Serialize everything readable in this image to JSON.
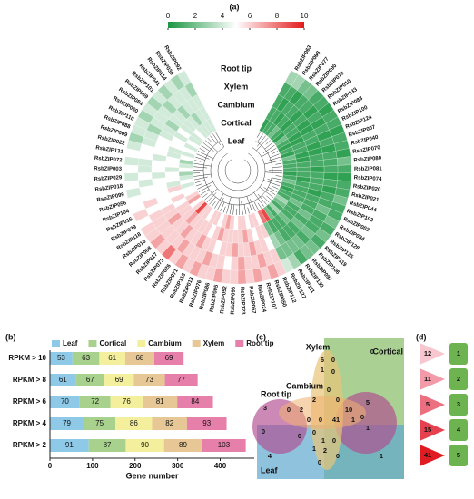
{
  "panel_a": {
    "label": "(a)",
    "colorbar": {
      "min": 0,
      "max": 10,
      "ticks": [
        0,
        2,
        4,
        6,
        8,
        10
      ],
      "low_color": "#1a9641",
      "mid_color": "#ffffff",
      "high_color": "#e31a1c"
    },
    "tissues": [
      "Root tip",
      "Xylem",
      "Cambium",
      "Cortical",
      "Leaf"
    ],
    "genes": [
      {
        "name": "RsbZIP063",
        "color": "#2a9d8f",
        "values": [
          3,
          1,
          1,
          1,
          0.5
        ]
      },
      {
        "name": "RsbZIP068",
        "color": "#2a9d8f",
        "values": [
          3,
          1,
          0.5,
          1,
          1
        ]
      },
      {
        "name": "RsbZIP077",
        "color": "#2a9d8f",
        "values": [
          2,
          0.5,
          1,
          0.5,
          1
        ]
      },
      {
        "name": "RsbZIP090",
        "color": "#2a9d8f",
        "values": [
          2,
          1,
          1,
          1,
          2
        ]
      },
      {
        "name": "RsbZIP079",
        "values": [
          1,
          1,
          0.5,
          0.5,
          1
        ]
      },
      {
        "name": "RsbZIP010",
        "values": [
          1,
          0.5,
          1,
          1,
          0.5
        ]
      },
      {
        "name": "RsbZIP133",
        "values": [
          0.5,
          1,
          0.5,
          1,
          2
        ]
      },
      {
        "name": "RsbZIP083",
        "values": [
          1,
          0.5,
          0.5,
          0.5,
          1
        ]
      },
      {
        "name": "RsbZIP100",
        "values": [
          1,
          1,
          1,
          0.5,
          0.5
        ]
      },
      {
        "name": "RsbZIP124",
        "values": [
          0.5,
          0.5,
          1,
          1,
          1
        ]
      },
      {
        "name": "RsbZIP007",
        "values": [
          1,
          1,
          0.5,
          1,
          0.5
        ]
      },
      {
        "name": "RsbZIP040",
        "values": [
          1,
          0.5,
          0.5,
          0.5,
          2
        ]
      },
      {
        "name": "RsbZIP070",
        "values": [
          0.5,
          1,
          1,
          0.5,
          1
        ]
      },
      {
        "name": "RsbZIP080",
        "values": [
          2,
          1,
          1,
          1,
          1
        ]
      },
      {
        "name": "RsbZIP081",
        "values": [
          1,
          1,
          0.5,
          1,
          1
        ]
      },
      {
        "name": "RsbZIP074",
        "values": [
          0.5,
          0.5,
          1,
          1,
          0.5
        ]
      },
      {
        "name": "RsbZIP020",
        "values": [
          1,
          1,
          1,
          0.5,
          1
        ]
      },
      {
        "name": "RsbZIP021",
        "values": [
          1,
          0.5,
          1,
          1,
          2
        ]
      },
      {
        "name": "RsbZIP044",
        "values": [
          2,
          1,
          0.5,
          1,
          1
        ]
      },
      {
        "name": "RsbZIP103",
        "values": [
          1,
          1,
          1,
          1,
          0.5
        ]
      },
      {
        "name": "RsbZIP002",
        "values": [
          1,
          2,
          1,
          1,
          1
        ]
      },
      {
        "name": "RsbZIP034",
        "values": [
          2,
          1,
          1,
          2,
          1
        ]
      },
      {
        "name": "RsbZIP128",
        "values": [
          1,
          1,
          2,
          1,
          3
        ]
      },
      {
        "name": "RsbZIP125",
        "values": [
          2,
          1,
          1,
          1,
          2
        ]
      },
      {
        "name": "RsbZIP119",
        "values": [
          1,
          2,
          2,
          1,
          1
        ]
      },
      {
        "name": "RsbZIP106",
        "values": [
          2,
          1,
          1,
          2,
          3
        ]
      },
      {
        "name": "RsbZIP097",
        "color": "#2a9d8f",
        "values": [
          2,
          2,
          1,
          1,
          1
        ]
      },
      {
        "name": "RsbZIP130",
        "color": "#2a9d8f",
        "values": [
          1,
          2,
          1,
          1,
          2
        ]
      },
      {
        "name": "RsbZIP111",
        "values": [
          3,
          2,
          2,
          1,
          9
        ]
      },
      {
        "name": "RsbZIP127",
        "values": [
          4,
          2,
          3,
          2,
          8
        ]
      },
      {
        "name": "RsbZIP112",
        "values": [
          6,
          6,
          5,
          6,
          5
        ]
      },
      {
        "name": "RsbZIP050",
        "values": [
          7,
          6,
          6,
          6,
          6
        ]
      },
      {
        "name": "RsbZIP107",
        "values": [
          6,
          7,
          6,
          5,
          6
        ]
      },
      {
        "name": "RsbZIP024",
        "values": [
          7,
          6,
          7,
          6,
          5
        ]
      },
      {
        "name": "RsbZIP067",
        "values": [
          6,
          6,
          6,
          7,
          6
        ]
      },
      {
        "name": "RsbZIP123",
        "values": [
          7,
          7,
          6,
          6,
          6
        ]
      },
      {
        "name": "RsbZIP098",
        "values": [
          6,
          6,
          7,
          6,
          5
        ]
      },
      {
        "name": "RsbZIP052",
        "values": [
          6,
          5,
          6,
          6,
          6
        ]
      },
      {
        "name": "RsbZIP005",
        "values": [
          7,
          6,
          6,
          6,
          7
        ]
      },
      {
        "name": "RsbZIP086",
        "color": "#e8202a",
        "values": [
          6,
          6,
          5,
          7,
          6
        ]
      },
      {
        "name": "RsbZIP076",
        "values": [
          6,
          7,
          6,
          6,
          5
        ]
      },
      {
        "name": "RsbZIP013",
        "values": [
          7,
          6,
          6,
          5,
          6
        ]
      },
      {
        "name": "RsbZIP116",
        "values": [
          6,
          6,
          7,
          6,
          6
        ]
      },
      {
        "name": "RsbZIP071",
        "values": [
          7,
          6,
          6,
          6,
          5
        ]
      },
      {
        "name": "RsbZIP026",
        "values": [
          6,
          7,
          6,
          6,
          6
        ]
      },
      {
        "name": "RsbZIP073",
        "values": [
          8,
          6,
          7,
          6,
          6
        ]
      },
      {
        "name": "RsbZIP017",
        "values": [
          6,
          6,
          6,
          7,
          9
        ]
      },
      {
        "name": "RsbZIP008",
        "color": "#e8202a",
        "values": [
          7,
          6,
          6,
          6,
          6
        ]
      },
      {
        "name": "RsbZIP016",
        "color": "#e8202a",
        "values": [
          6,
          6,
          7,
          6,
          5
        ]
      },
      {
        "name": "RsbZIP118",
        "color": "#e8202a",
        "values": [
          6,
          6,
          6,
          6,
          7
        ]
      },
      {
        "name": "RsbZIP039",
        "color": "#e8202a",
        "values": [
          5,
          6,
          6,
          5,
          6
        ]
      },
      {
        "name": "RsbZIP015",
        "values": [
          6,
          5,
          5,
          6,
          5
        ]
      },
      {
        "name": "RsbZIP104",
        "values": [
          5,
          6,
          5,
          5,
          5
        ]
      },
      {
        "name": "RsbZIP056",
        "values": [
          5,
          5,
          5,
          6,
          4
        ]
      },
      {
        "name": "RsbZIP099",
        "values": [
          4,
          5,
          5,
          4,
          5
        ]
      },
      {
        "name": "RsbZIP018",
        "values": [
          5,
          4,
          5,
          5,
          4
        ]
      },
      {
        "name": "RsbZIP029",
        "values": [
          4,
          5,
          4,
          5,
          3
        ]
      },
      {
        "name": "RsbZIP003",
        "values": [
          5,
          4,
          5,
          4,
          5
        ]
      },
      {
        "name": "RsbZIP072",
        "values": [
          4,
          4,
          5,
          5,
          4
        ]
      },
      {
        "name": "RsbZIP131",
        "values": [
          5,
          5,
          4,
          5,
          3
        ]
      },
      {
        "name": "RsbZIP022",
        "color": "#e8202a",
        "values": [
          4,
          5,
          5,
          4,
          5
        ]
      },
      {
        "name": "RsbZIP009",
        "color": "#e8202a",
        "values": [
          3,
          4,
          5,
          4,
          4
        ]
      },
      {
        "name": "RsbZIP088",
        "color": "#e8202a",
        "values": [
          4,
          4,
          5,
          5,
          5
        ]
      },
      {
        "name": "RsbZIP110",
        "color": "#e8202a",
        "values": [
          4,
          3,
          4,
          5,
          4
        ]
      },
      {
        "name": "RsbZIP060",
        "color": "#e8202a",
        "values": [
          3,
          4,
          4,
          4,
          5
        ]
      },
      {
        "name": "RsbZIP084",
        "values": [
          4,
          4,
          3,
          5,
          4
        ]
      },
      {
        "name": "RsbZIP059",
        "values": [
          3,
          4,
          4,
          4,
          4
        ]
      },
      {
        "name": "RsbZIP101",
        "values": [
          4,
          3,
          4,
          4,
          5
        ]
      },
      {
        "name": "RsbZIP041",
        "values": [
          3,
          4,
          3,
          4,
          4
        ]
      },
      {
        "name": "RsbZIP114",
        "values": [
          4,
          4,
          4,
          3,
          4
        ]
      },
      {
        "name": "RsbZIP036",
        "color": "#e8202a",
        "values": [
          3,
          4,
          4,
          4,
          4
        ]
      },
      {
        "name": "RsbZIP092",
        "values": [
          4,
          3,
          4,
          4,
          4
        ]
      }
    ]
  },
  "panel_b": {
    "label": "(b)",
    "type": "bar",
    "orientation": "horizontal",
    "stacked": true,
    "categories": [
      "RPKM > 10",
      "RPKM > 8",
      "RPKM > 6",
      "RPKM > 4",
      "RPKM > 2"
    ],
    "series": [
      {
        "name": "Leaf",
        "color": "#8ec9e8",
        "values": [
          53,
          61,
          70,
          79,
          91
        ]
      },
      {
        "name": "Cortical",
        "color": "#a9d18e",
        "values": [
          63,
          67,
          72,
          75,
          87
        ]
      },
      {
        "name": "Cambium",
        "color": "#f3ef9c",
        "values": [
          61,
          69,
          76,
          86,
          90
        ]
      },
      {
        "name": "Xylem",
        "color": "#e6c795",
        "values": [
          68,
          73,
          81,
          82,
          89
        ]
      },
      {
        "name": "Root tip",
        "color": "#e77fab",
        "values": [
          69,
          77,
          84,
          93,
          103
        ]
      }
    ],
    "xlim": [
      0,
      480
    ],
    "xticks": [
      0,
      100,
      200,
      300,
      400
    ],
    "xlabel": "Gene number"
  },
  "panel_c": {
    "label": "(c)",
    "sets": [
      "Root tip",
      "Cambium",
      "Xylem",
      "Cortical",
      "Leaf"
    ],
    "counts": [
      0,
      6,
      0,
      1,
      0,
      3,
      5,
      0,
      2,
      2,
      0,
      0,
      0,
      0,
      41,
      1,
      10,
      0,
      1,
      0,
      1,
      0,
      2,
      1,
      0,
      0,
      4,
      1,
      0,
      0
    ]
  },
  "panel_d": {
    "label": "(d)",
    "counts": [
      12,
      11,
      5,
      15,
      41
    ],
    "groups": [
      1,
      2,
      3,
      4,
      5
    ]
  }
}
